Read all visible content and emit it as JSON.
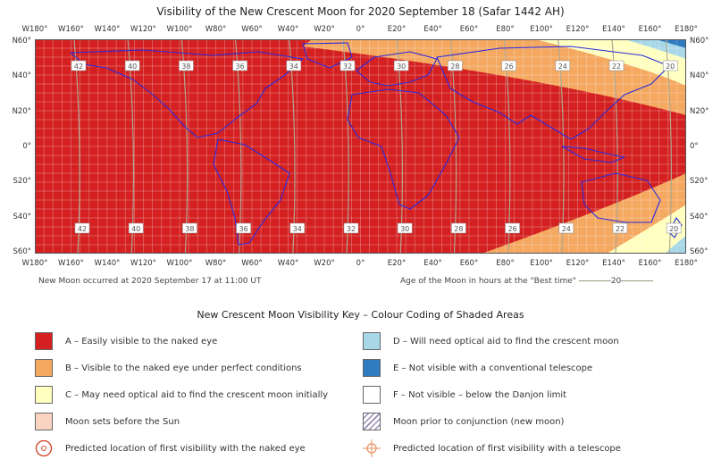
{
  "title": "Visibility of the New Crescent Moon for 2020 September 18 (Safar 1442 AH)",
  "longitude_labels": [
    "W180°",
    "W160°",
    "W140°",
    "W120°",
    "W100°",
    "W80°",
    "W60°",
    "W40°",
    "W20°",
    "0°",
    "E20°",
    "E40°",
    "E60°",
    "E80°",
    "E100°",
    "E120°",
    "E140°",
    "E160°",
    "E180°"
  ],
  "latitude_labels": [
    "N60°",
    "N40°",
    "N20°",
    "0°",
    "S20°",
    "S40°",
    "S60°"
  ],
  "age_labels_top": [
    "42",
    "40",
    "38",
    "36",
    "34",
    "32",
    "30",
    "28",
    "26",
    "24",
    "22",
    "20"
  ],
  "age_labels_bottom": [
    "42",
    "40",
    "38",
    "36",
    "34",
    "32",
    "30",
    "28",
    "26",
    "24",
    "22",
    "20"
  ],
  "footer_left": "New Moon occurred at 2020 September 17 at 11:00 UT",
  "footer_right_text": "Age of the Moon in hours at the \"Best time\"",
  "footer_right_value": "20",
  "key_title": "New Crescent Moon Visibility Key – Colour Coding of Shaded Areas",
  "key_left": [
    {
      "label": "A – Easily visible to the naked eye",
      "color": "#d42020"
    },
    {
      "label": "B – Visible to the naked eye under perfect conditions",
      "color": "#f4a860"
    },
    {
      "label": "C – May need optical aid to find the crescent moon initially",
      "color": "#ffffc0"
    },
    {
      "label": "Moon sets before the Sun",
      "color": "#fad4c0"
    },
    {
      "label": "Predicted location of first visibility with the naked eye",
      "icon": "target-circle-icon"
    }
  ],
  "key_right": [
    {
      "label": "D – Will need optical aid to find the crescent moon",
      "color": "#a8d8e8"
    },
    {
      "label": "E – Not visible with a conventional telescope",
      "color": "#2e7bbf"
    },
    {
      "label": "F – Not visible – below the Danjon limit",
      "color": "#ffffff"
    },
    {
      "label": "Moon prior to conjunction (new moon)",
      "icon": "hatched-icon"
    },
    {
      "label": "Predicted location of first visibility with a telescope",
      "icon": "crosshair-circle-icon"
    }
  ],
  "colors": {
    "zone_a": "#d42020",
    "zone_b": "#f4a860",
    "zone_c": "#ffffc0",
    "zone_d": "#a8d8e8",
    "zone_e": "#2e7bbf",
    "coast": "#2a2ae0",
    "age_line": "#a89a7a",
    "target_red": "#d04020",
    "target_orange": "#e89060"
  }
}
